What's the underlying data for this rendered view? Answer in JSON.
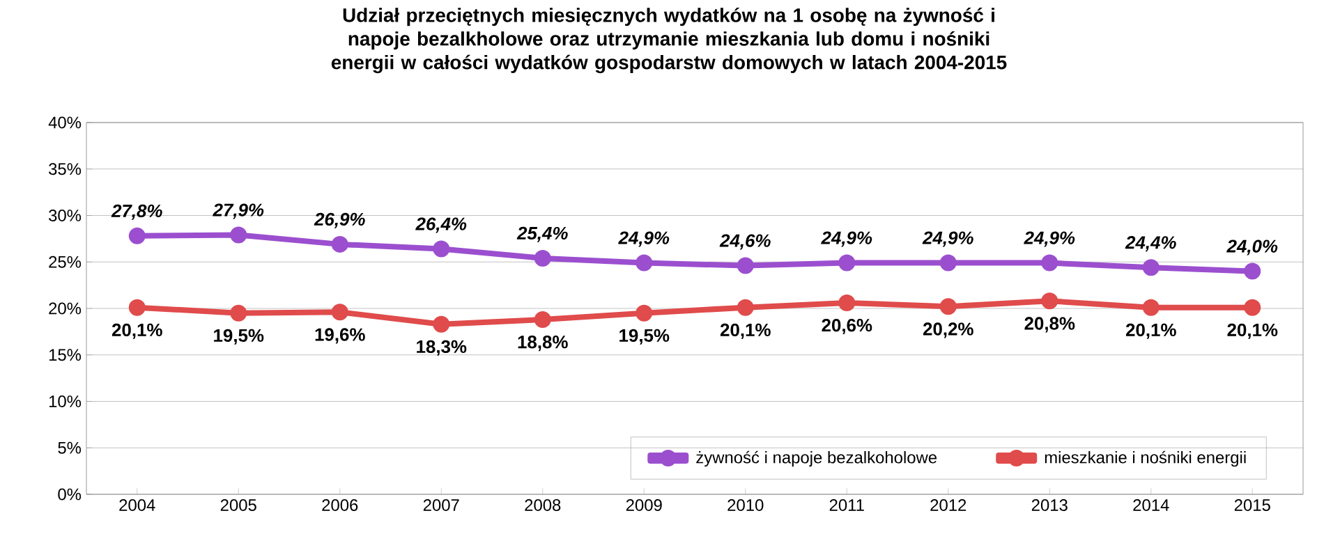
{
  "chart_data": {
    "type": "line",
    "title": "Udział przeciętnych miesięcznych wydatków na 1 osobę na żywność i napoje bezalkholowe oraz utrzymanie mieszkania lub domu i nośniki energii w całości wydatków gospodarstw domowych w latach 2004-2015",
    "categories": [
      "2004",
      "2005",
      "2006",
      "2007",
      "2008",
      "2009",
      "2010",
      "2011",
      "2012",
      "2013",
      "2014",
      "2015"
    ],
    "series": [
      {
        "name": "żywność i napoje bezalkoholowe",
        "color": "#9b4fcf",
        "values": [
          27.8,
          27.9,
          26.9,
          26.4,
          25.4,
          24.9,
          24.6,
          24.9,
          24.9,
          24.9,
          24.4,
          24.0
        ],
        "value_labels": [
          "27,8%",
          "27,9%",
          "26,9%",
          "26,4%",
          "25,4%",
          "24,9%",
          "24,6%",
          "24,9%",
          "24,9%",
          "24,9%",
          "24,4%",
          "24,0%"
        ]
      },
      {
        "name": "mieszkanie i nośniki energii",
        "color": "#e04b4b",
        "values": [
          20.1,
          19.5,
          19.6,
          18.3,
          18.8,
          19.5,
          20.1,
          20.6,
          20.2,
          20.8,
          20.1,
          20.1
        ],
        "value_labels": [
          "20,1%",
          "19,5%",
          "19,6%",
          "18,3%",
          "18,8%",
          "19,5%",
          "20,1%",
          "20,6%",
          "20,2%",
          "20,8%",
          "20,1%",
          "20,1%"
        ]
      }
    ],
    "ylim": [
      0,
      40
    ],
    "yticks": [
      {
        "value": 0,
        "label": "0%"
      },
      {
        "value": 5,
        "label": "5%"
      },
      {
        "value": 10,
        "label": "10%"
      },
      {
        "value": 15,
        "label": "15%"
      },
      {
        "value": 20,
        "label": "20%"
      },
      {
        "value": 25,
        "label": "25%"
      },
      {
        "value": 30,
        "label": "30%"
      },
      {
        "value": 35,
        "label": "35%"
      },
      {
        "value": 40,
        "label": "40%"
      }
    ],
    "grid": "y",
    "legend": "bottom right",
    "marker": "circle",
    "line_style": "solid"
  }
}
